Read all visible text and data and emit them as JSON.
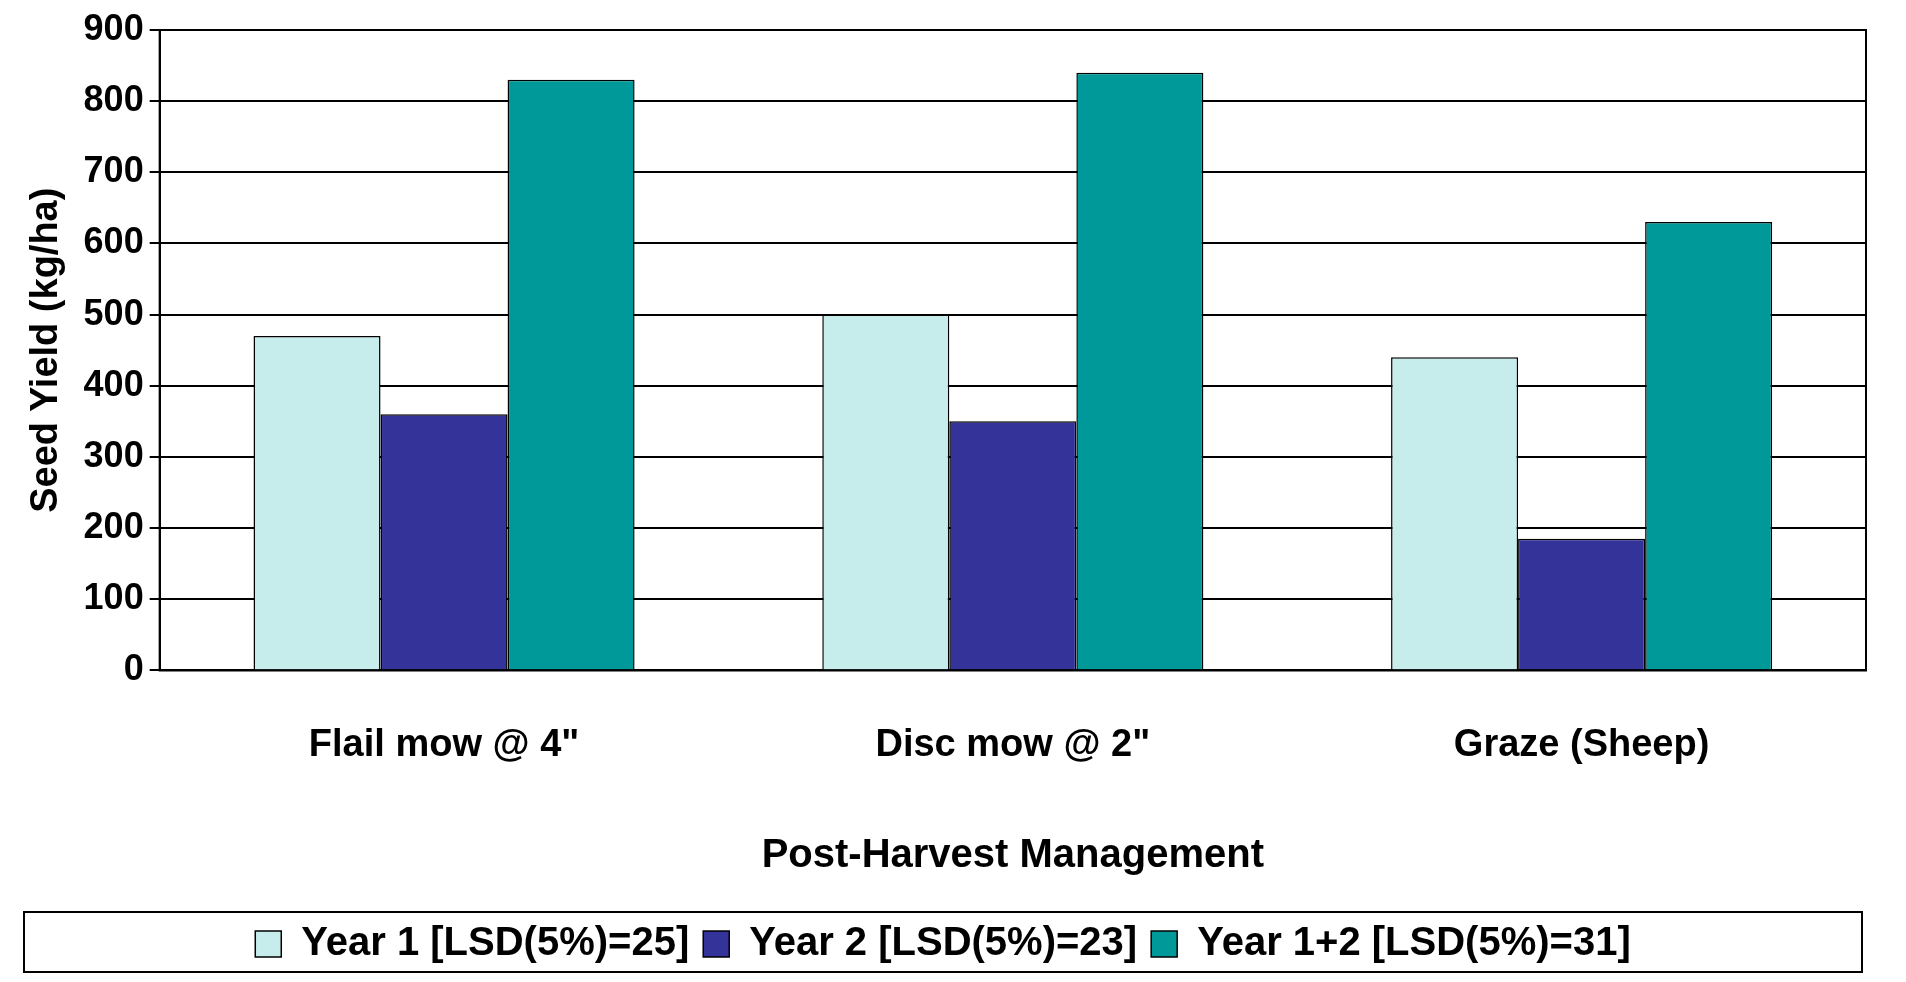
{
  "chart_data": {
    "type": "bar",
    "xlabel": "Post-Harvest Management",
    "ylabel": "Seed Yield (kg/ha)",
    "categories": [
      "Flail mow @ 4\"",
      "Disc mow @ 2\"",
      "Graze (Sheep)"
    ],
    "series": [
      {
        "name": "Year 1 [LSD(5%)=25]",
        "color": "#c6ecec",
        "values": [
          470,
          500,
          440
        ]
      },
      {
        "name": "Year 2 [LSD(5%)=23]",
        "color": "#333399",
        "values": [
          360,
          350,
          185
        ]
      },
      {
        "name": "Year 1+2 [LSD(5%)=31]",
        "color": "#009999",
        "values": [
          830,
          840,
          630
        ]
      }
    ],
    "ylim": [
      0,
      900
    ],
    "yticks": [
      0,
      100,
      200,
      300,
      400,
      500,
      600,
      700,
      800,
      900
    ],
    "grid": "y",
    "legend": "bottom"
  }
}
